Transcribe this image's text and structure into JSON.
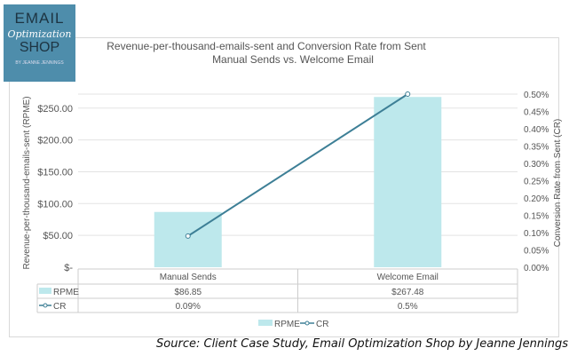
{
  "logo": {
    "line1": "EMAIL",
    "line2": "Optimization",
    "line3": "SHOP",
    "line4": "BY JEANNE JENNINGS",
    "color": "#4e8dab"
  },
  "source": "Source: Client Case Study, Email Optimization Shop by Jeanne Jennings",
  "chart_data": {
    "type": "bar+line",
    "title": "Revenue-per-thousand-emails-sent and Conversion Rate from Sent",
    "subtitle": "Manual Sends vs. Welcome Email",
    "categories": [
      "Manual Sends",
      "Welcome Email"
    ],
    "series": [
      {
        "name": "RPME",
        "type": "bar",
        "axis": "left",
        "values": [
          86.85,
          267.48
        ],
        "labels": [
          "$86.85",
          "$267.48"
        ],
        "color": "#bde8ec"
      },
      {
        "name": "CR",
        "type": "line",
        "axis": "right",
        "values": [
          0.09,
          0.5
        ],
        "labels": [
          "0.09%",
          "0.5%"
        ],
        "color": "#3d7f96"
      }
    ],
    "ylabel": "Revenue-per-thousand-emails-sent (RPME)",
    "y2label": "Conversion Rate from Sent (CR)",
    "yticks": [
      "$-",
      "$50.00",
      "$100.00",
      "$150.00",
      "$200.00",
      "$250.00"
    ],
    "ytick_values": [
      0,
      50,
      100,
      150,
      200,
      250
    ],
    "ylim": [
      0,
      272
    ],
    "y2ticks": [
      "0.00%",
      "0.05%",
      "0.10%",
      "0.15%",
      "0.20%",
      "0.25%",
      "0.30%",
      "0.35%",
      "0.40%",
      "0.45%",
      "0.50%"
    ],
    "y2lim": [
      0,
      0.5
    ],
    "grid": true,
    "legend": "bottom",
    "data_table": true
  }
}
